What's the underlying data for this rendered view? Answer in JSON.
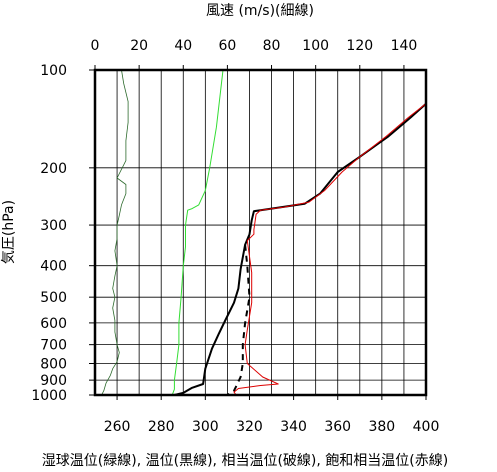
{
  "chart_data": {
    "type": "line",
    "title": "",
    "top_axis": {
      "label": "風速 (m/s)(細線)",
      "ticks": [
        "0",
        "20",
        "40",
        "60",
        "80",
        "100",
        "120",
        "140"
      ],
      "range": [
        0,
        150
      ]
    },
    "bottom_axis": {
      "label": "湿球温位(緑線), 温位(黒線), 相当温位(破線), 飽和相当温位(赤線)",
      "ticks": [
        "260",
        "280",
        "300",
        "320",
        "340",
        "360",
        "380",
        "400"
      ],
      "range": [
        250,
        400
      ]
    },
    "left_axis": {
      "label": "気圧(hPa)",
      "ticks": [
        "100",
        "200",
        "300",
        "400",
        "500",
        "600",
        "700",
        "800",
        "900",
        "1000"
      ],
      "scale": "log",
      "range": [
        1000,
        100
      ]
    },
    "grid": true,
    "series": [
      {
        "axis": "top",
        "color": "#2e6b2e",
        "style": "thin",
        "points": [
          [
            12,
            100
          ],
          [
            13,
            110
          ],
          [
            15,
            125
          ],
          [
            15,
            145
          ],
          [
            14,
            165
          ],
          [
            14,
            190
          ],
          [
            10,
            215
          ],
          [
            14,
            225
          ],
          [
            14,
            240
          ],
          [
            12,
            260
          ],
          [
            11,
            280
          ],
          [
            10,
            300
          ],
          [
            10,
            330
          ],
          [
            9,
            360
          ],
          [
            10,
            400
          ],
          [
            9,
            430
          ],
          [
            8,
            470
          ],
          [
            9,
            500
          ],
          [
            8,
            540
          ],
          [
            9,
            590
          ],
          [
            9,
            640
          ],
          [
            10,
            700
          ],
          [
            11,
            740
          ],
          [
            10,
            790
          ],
          [
            8,
            830
          ],
          [
            7,
            870
          ],
          [
            5,
            920
          ],
          [
            4,
            970
          ],
          [
            3,
            1000
          ]
        ]
      },
      {
        "axis": "bottom",
        "color": "#33dd33",
        "points": [
          [
            308,
            100
          ],
          [
            305,
            150
          ],
          [
            302,
            200
          ],
          [
            300,
            235
          ],
          [
            297,
            260
          ],
          [
            294,
            267
          ],
          [
            292,
            270
          ],
          [
            291,
            300
          ],
          [
            291,
            350
          ],
          [
            290,
            400
          ],
          [
            289,
            500
          ],
          [
            288,
            600
          ],
          [
            288,
            700
          ],
          [
            287,
            800
          ],
          [
            286,
            900
          ],
          [
            286,
            960
          ],
          [
            285,
            1000
          ]
        ]
      },
      {
        "axis": "bottom",
        "color": "#000000",
        "style": "solid",
        "points": [
          [
            400,
            127
          ],
          [
            393,
            140
          ],
          [
            383,
            160
          ],
          [
            370,
            185
          ],
          [
            360,
            206
          ],
          [
            352,
            240
          ],
          [
            345,
            258
          ],
          [
            335,
            264
          ],
          [
            325,
            270
          ],
          [
            322,
            272
          ],
          [
            321,
            290
          ],
          [
            320,
            320
          ],
          [
            318,
            345
          ],
          [
            316,
            410
          ],
          [
            315,
            470
          ],
          [
            313,
            520
          ],
          [
            309,
            590
          ],
          [
            306,
            650
          ],
          [
            303,
            720
          ],
          [
            300,
            830
          ],
          [
            299,
            925
          ],
          [
            294,
            950
          ],
          [
            290,
            985
          ],
          [
            286,
            1000
          ]
        ]
      },
      {
        "axis": "bottom",
        "color": "#000000",
        "style": "dashed",
        "points": [
          [
            318,
            345
          ],
          [
            319,
            400
          ],
          [
            320,
            500
          ],
          [
            318,
            600
          ],
          [
            317,
            700
          ],
          [
            317,
            800
          ],
          [
            316,
            880
          ],
          [
            314,
            940
          ],
          [
            313,
            970
          ],
          [
            310,
            1000
          ]
        ]
      },
      {
        "axis": "bottom",
        "color": "#dd0000",
        "points": [
          [
            400,
            127
          ],
          [
            392,
            140
          ],
          [
            382,
            160
          ],
          [
            370,
            185
          ],
          [
            362,
            206
          ],
          [
            354,
            235
          ],
          [
            347,
            255
          ],
          [
            336,
            264
          ],
          [
            325,
            270
          ],
          [
            323,
            278
          ],
          [
            322,
            310
          ],
          [
            322,
            320
          ],
          [
            319,
            335
          ],
          [
            321,
            420
          ],
          [
            321,
            520
          ],
          [
            319,
            630
          ],
          [
            318,
            700
          ],
          [
            319,
            800
          ],
          [
            326,
            880
          ],
          [
            333,
            925
          ],
          [
            325,
            935
          ],
          [
            315,
            955
          ],
          [
            313,
            980
          ],
          [
            314,
            1000
          ]
        ]
      }
    ]
  }
}
